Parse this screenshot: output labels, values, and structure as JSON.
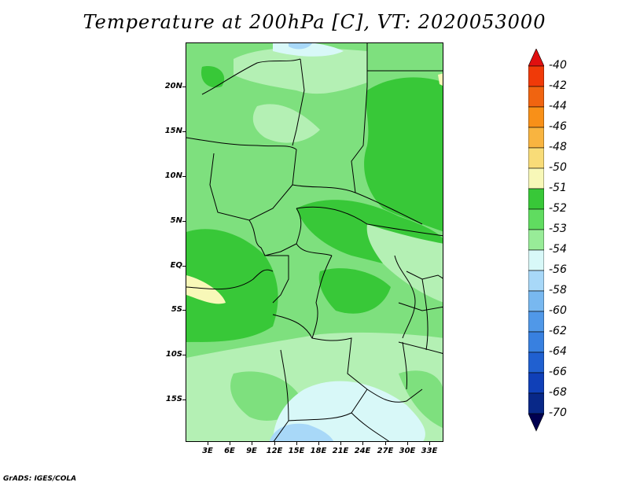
{
  "title": "Temperature at 200hPa [C], VT: 2020053000",
  "footer": "GrADS: IGES/COLA",
  "lat_ticks": [
    "20N",
    "15N",
    "10N",
    "5N",
    "EQ",
    "5S",
    "10S",
    "15S"
  ],
  "lon_ticks": [
    "3E",
    "6E",
    "9E",
    "12E",
    "15E",
    "18E",
    "21E",
    "24E",
    "27E",
    "30E",
    "33E"
  ],
  "colorbar": {
    "labels": [
      "-40",
      "-42",
      "-44",
      "-46",
      "-48",
      "-50",
      "-51",
      "-52",
      "-53",
      "-54",
      "-56",
      "-58",
      "-60",
      "-62",
      "-64",
      "-66",
      "-68",
      "-70"
    ],
    "colors": [
      "#e01010",
      "#f03a08",
      "#f06410",
      "#f89018",
      "#f8b440",
      "#f8dc78",
      "#f8f8b8",
      "#38c838",
      "#60dc60",
      "#98ec98",
      "#d8f8f8",
      "#a8d8f8",
      "#78b8f0",
      "#5098e8",
      "#3880e0",
      "#2060d0",
      "#1040b8",
      "#082888",
      "#000050"
    ]
  },
  "colors": {
    "base_field": "#7ee07e",
    "warm_patch": "#38c838",
    "cool_patch": "#b4f0b4",
    "cold_patch": "#d8f8f8",
    "blue_patch": "#a8d8f8",
    "yellow_patch": "#f8f8b8"
  }
}
